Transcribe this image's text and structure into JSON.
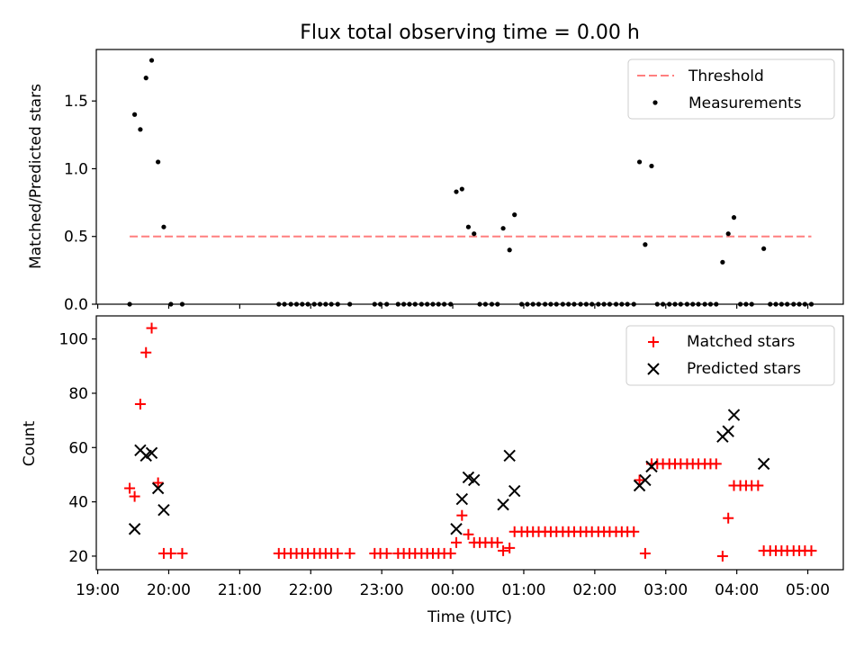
{
  "figure": {
    "title": "Flux total observing time = 0.00 h",
    "xlabel": "Time (UTC)",
    "x_tick_labels": [
      "19:00",
      "20:00",
      "21:00",
      "22:00",
      "23:00",
      "00:00",
      "01:00",
      "02:00",
      "03:00",
      "04:00",
      "05:00"
    ]
  },
  "chart_data": [
    {
      "type": "scatter",
      "title": "Flux total observing time = 0.00 h",
      "xlabel": "",
      "ylabel": "Matched/Predicted stars",
      "x_unit": "hours since 19:00 UTC",
      "xlim": [
        -0.02,
        10.5
      ],
      "ylim": [
        0.0,
        1.88
      ],
      "y_ticks": [
        0.0,
        0.5,
        1.0,
        1.5
      ],
      "y_tick_labels": [
        "0.0",
        "0.5",
        "1.0",
        "1.5"
      ],
      "grid": false,
      "legend": "top-right",
      "threshold": {
        "name": "Threshold",
        "value": 0.5,
        "x_range": [
          0.45,
          10.05
        ],
        "color": "#ff7f7f",
        "style": "dashed"
      },
      "series": [
        {
          "name": "Measurements",
          "marker": "dot",
          "color": "#000000",
          "points": [
            [
              0.45,
              0.0
            ],
            [
              0.52,
              1.4
            ],
            [
              0.6,
              1.29
            ],
            [
              0.68,
              1.67
            ],
            [
              0.76,
              1.8
            ],
            [
              0.85,
              1.05
            ],
            [
              0.93,
              0.57
            ],
            [
              1.03,
              0.0
            ],
            [
              1.19,
              0.0
            ],
            [
              2.55,
              0.0
            ],
            [
              2.63,
              0.0
            ],
            [
              2.72,
              0.0
            ],
            [
              2.8,
              0.0
            ],
            [
              2.88,
              0.0
            ],
            [
              2.96,
              0.0
            ],
            [
              3.05,
              0.0
            ],
            [
              3.13,
              0.0
            ],
            [
              3.21,
              0.0
            ],
            [
              3.29,
              0.0
            ],
            [
              3.38,
              0.0
            ],
            [
              3.55,
              0.0
            ],
            [
              3.9,
              0.0
            ],
            [
              3.98,
              0.0
            ],
            [
              4.07,
              0.0
            ],
            [
              4.23,
              0.0
            ],
            [
              4.31,
              0.0
            ],
            [
              4.39,
              0.0
            ],
            [
              4.47,
              0.0
            ],
            [
              4.56,
              0.0
            ],
            [
              4.64,
              0.0
            ],
            [
              4.72,
              0.0
            ],
            [
              4.8,
              0.0
            ],
            [
              4.88,
              0.0
            ],
            [
              4.97,
              0.0
            ],
            [
              5.05,
              0.83
            ],
            [
              5.13,
              0.85
            ],
            [
              5.22,
              0.57
            ],
            [
              5.3,
              0.52
            ],
            [
              5.38,
              0.0
            ],
            [
              5.46,
              0.0
            ],
            [
              5.55,
              0.0
            ],
            [
              5.63,
              0.0
            ],
            [
              5.71,
              0.56
            ],
            [
              5.8,
              0.4
            ],
            [
              5.87,
              0.66
            ],
            [
              5.97,
              0.0
            ],
            [
              6.05,
              0.0
            ],
            [
              6.13,
              0.0
            ],
            [
              6.21,
              0.0
            ],
            [
              6.3,
              0.0
            ],
            [
              6.38,
              0.0
            ],
            [
              6.46,
              0.0
            ],
            [
              6.55,
              0.0
            ],
            [
              6.63,
              0.0
            ],
            [
              6.71,
              0.0
            ],
            [
              6.8,
              0.0
            ],
            [
              6.88,
              0.0
            ],
            [
              6.96,
              0.0
            ],
            [
              7.05,
              0.0
            ],
            [
              7.13,
              0.0
            ],
            [
              7.21,
              0.0
            ],
            [
              7.3,
              0.0
            ],
            [
              7.38,
              0.0
            ],
            [
              7.46,
              0.0
            ],
            [
              7.55,
              0.0
            ],
            [
              7.63,
              1.05
            ],
            [
              7.71,
              0.44
            ],
            [
              7.8,
              1.02
            ],
            [
              7.88,
              0.0
            ],
            [
              7.96,
              0.0
            ],
            [
              8.05,
              0.0
            ],
            [
              8.13,
              0.0
            ],
            [
              8.21,
              0.0
            ],
            [
              8.3,
              0.0
            ],
            [
              8.38,
              0.0
            ],
            [
              8.46,
              0.0
            ],
            [
              8.55,
              0.0
            ],
            [
              8.63,
              0.0
            ],
            [
              8.71,
              0.0
            ],
            [
              8.8,
              0.31
            ],
            [
              8.88,
              0.52
            ],
            [
              8.96,
              0.64
            ],
            [
              9.05,
              0.0
            ],
            [
              9.13,
              0.0
            ],
            [
              9.21,
              0.0
            ],
            [
              9.38,
              0.41
            ],
            [
              9.47,
              0.0
            ],
            [
              9.55,
              0.0
            ],
            [
              9.63,
              0.0
            ],
            [
              9.71,
              0.0
            ],
            [
              9.8,
              0.0
            ],
            [
              9.88,
              0.0
            ],
            [
              9.96,
              0.0
            ],
            [
              10.05,
              0.0
            ]
          ]
        }
      ]
    },
    {
      "type": "scatter",
      "title": "",
      "xlabel": "Time (UTC)",
      "ylabel": "Count",
      "x_unit": "hours since 19:00 UTC",
      "xlim": [
        -0.02,
        10.5
      ],
      "ylim": [
        15,
        108.5
      ],
      "y_ticks": [
        20,
        40,
        60,
        80,
        100
      ],
      "y_tick_labels": [
        "20",
        "40",
        "60",
        "80",
        "100"
      ],
      "grid": false,
      "legend": "top-right",
      "series": [
        {
          "name": "Matched stars",
          "marker": "plus",
          "color": "#ff0000",
          "points": [
            [
              0.45,
              45
            ],
            [
              0.52,
              42
            ],
            [
              0.6,
              76
            ],
            [
              0.68,
              95
            ],
            [
              0.76,
              104
            ],
            [
              0.85,
              47
            ],
            [
              0.93,
              21
            ],
            [
              1.03,
              21
            ],
            [
              1.19,
              21
            ],
            [
              2.55,
              21
            ],
            [
              2.63,
              21
            ],
            [
              2.72,
              21
            ],
            [
              2.8,
              21
            ],
            [
              2.88,
              21
            ],
            [
              2.96,
              21
            ],
            [
              3.05,
              21
            ],
            [
              3.13,
              21
            ],
            [
              3.21,
              21
            ],
            [
              3.29,
              21
            ],
            [
              3.38,
              21
            ],
            [
              3.55,
              21
            ],
            [
              3.9,
              21
            ],
            [
              3.98,
              21
            ],
            [
              4.07,
              21
            ],
            [
              4.23,
              21
            ],
            [
              4.31,
              21
            ],
            [
              4.39,
              21
            ],
            [
              4.47,
              21
            ],
            [
              4.56,
              21
            ],
            [
              4.64,
              21
            ],
            [
              4.72,
              21
            ],
            [
              4.8,
              21
            ],
            [
              4.88,
              21
            ],
            [
              4.97,
              21
            ],
            [
              5.05,
              25
            ],
            [
              5.13,
              35
            ],
            [
              5.22,
              28
            ],
            [
              5.3,
              25
            ],
            [
              5.38,
              25
            ],
            [
              5.46,
              25
            ],
            [
              5.55,
              25
            ],
            [
              5.63,
              25
            ],
            [
              5.71,
              22
            ],
            [
              5.8,
              23
            ],
            [
              5.87,
              29
            ],
            [
              5.97,
              29
            ],
            [
              6.05,
              29
            ],
            [
              6.13,
              29
            ],
            [
              6.21,
              29
            ],
            [
              6.3,
              29
            ],
            [
              6.38,
              29
            ],
            [
              6.46,
              29
            ],
            [
              6.55,
              29
            ],
            [
              6.63,
              29
            ],
            [
              6.71,
              29
            ],
            [
              6.8,
              29
            ],
            [
              6.88,
              29
            ],
            [
              6.96,
              29
            ],
            [
              7.05,
              29
            ],
            [
              7.13,
              29
            ],
            [
              7.21,
              29
            ],
            [
              7.3,
              29
            ],
            [
              7.38,
              29
            ],
            [
              7.46,
              29
            ],
            [
              7.55,
              29
            ],
            [
              7.63,
              48
            ],
            [
              7.71,
              21
            ],
            [
              7.8,
              54
            ],
            [
              7.88,
              54
            ],
            [
              7.96,
              54
            ],
            [
              8.05,
              54
            ],
            [
              8.13,
              54
            ],
            [
              8.21,
              54
            ],
            [
              8.3,
              54
            ],
            [
              8.38,
              54
            ],
            [
              8.46,
              54
            ],
            [
              8.55,
              54
            ],
            [
              8.63,
              54
            ],
            [
              8.71,
              54
            ],
            [
              8.8,
              20
            ],
            [
              8.88,
              34
            ],
            [
              8.96,
              46
            ],
            [
              9.05,
              46
            ],
            [
              9.13,
              46
            ],
            [
              9.21,
              46
            ],
            [
              9.3,
              46
            ],
            [
              9.38,
              22
            ],
            [
              9.47,
              22
            ],
            [
              9.55,
              22
            ],
            [
              9.63,
              22
            ],
            [
              9.71,
              22
            ],
            [
              9.8,
              22
            ],
            [
              9.88,
              22
            ],
            [
              9.96,
              22
            ],
            [
              10.05,
              22
            ]
          ]
        },
        {
          "name": "Predicted stars",
          "marker": "x",
          "color": "#000000",
          "points": [
            [
              0.52,
              30
            ],
            [
              0.6,
              59
            ],
            [
              0.68,
              57
            ],
            [
              0.76,
              58
            ],
            [
              0.85,
              45
            ],
            [
              0.93,
              37
            ],
            [
              5.05,
              30
            ],
            [
              5.13,
              41
            ],
            [
              5.22,
              49
            ],
            [
              5.3,
              48
            ],
            [
              5.71,
              39
            ],
            [
              5.8,
              57
            ],
            [
              5.87,
              44
            ],
            [
              7.63,
              46
            ],
            [
              7.71,
              48
            ],
            [
              7.8,
              53
            ],
            [
              8.8,
              64
            ],
            [
              8.88,
              66
            ],
            [
              8.96,
              72
            ],
            [
              9.38,
              54
            ]
          ]
        }
      ]
    }
  ]
}
